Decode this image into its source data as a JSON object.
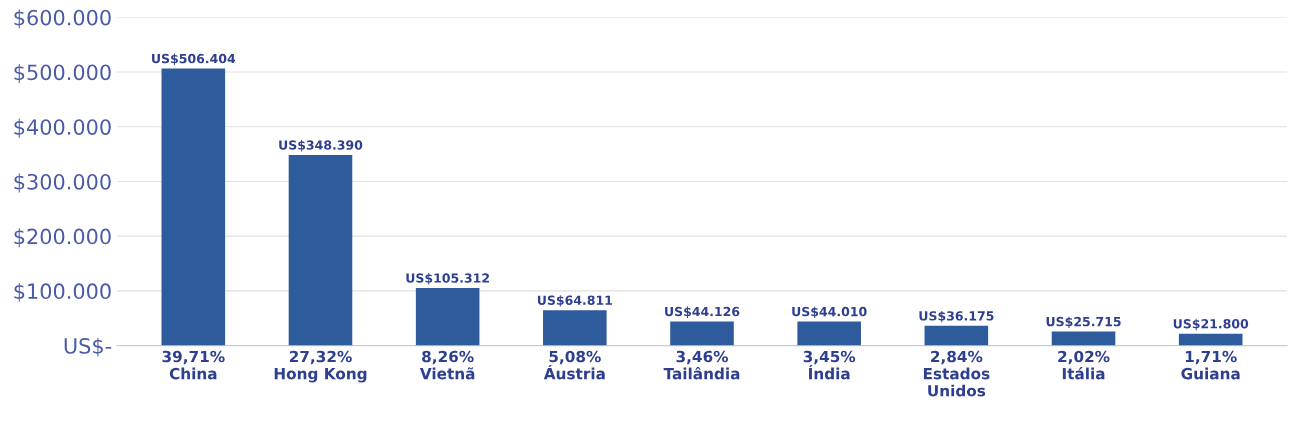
{
  "chart_data": {
    "type": "bar",
    "categories": [
      "39,71%\nChina",
      "27,32%\nHong Kong",
      "8,26%\nVietnã",
      "5,08%\nÁustria",
      "3,46%\nTailândia",
      "3,45%\nÍndia",
      "2,84%\nEstados\nUnidos",
      "2,02%\nItália",
      "1,71%\nGuiana"
    ],
    "values": [
      506404,
      348390,
      105312,
      64811,
      44126,
      44010,
      36175,
      25715,
      21800
    ],
    "value_labels": [
      "US$506.404",
      "US$348.390",
      "US$105.312",
      "US$64.811",
      "US$44.126",
      "US$44.010",
      "US$36.175",
      "US$25.715",
      "US$21.800"
    ],
    "color": "#2e5b9c",
    "ylim": [
      0,
      600000
    ],
    "yticks": [
      {
        "value": 0,
        "label": "US$-"
      },
      {
        "value": 100000,
        "label": "$100.000"
      },
      {
        "value": 200000,
        "label": "$200.000"
      },
      {
        "value": 300000,
        "label": "$300.000"
      },
      {
        "value": 400000,
        "label": "$400.000"
      },
      {
        "value": 500000,
        "label": "$500.000"
      },
      {
        "value": 600000,
        "label": "$600.000"
      }
    ],
    "grid": "y",
    "legend": false
  }
}
